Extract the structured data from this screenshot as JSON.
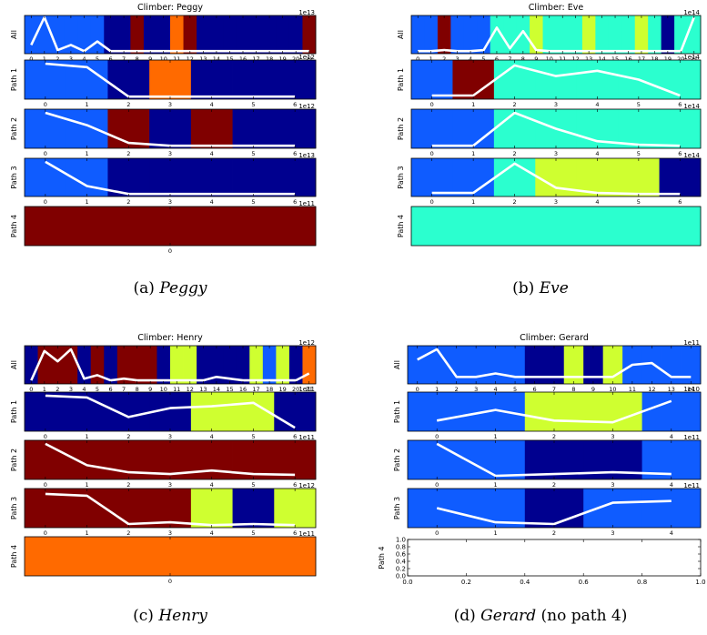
{
  "colors": {
    "dark_blue": "#00008f",
    "blue": "#0f5cff",
    "cyan": "#2bffcf",
    "yellow": "#cfff30",
    "orange": "#ff6a00",
    "dark_red": "#800000",
    "line": "#ffffff",
    "frame": "#000000"
  },
  "chart_data": [
    {
      "type": "heatmap",
      "title": "Climber: Peggy",
      "caption": {
        "label": "(a)",
        "name": "Peggy",
        "note": ""
      },
      "panels": [
        {
          "ylabel": "All",
          "exponent": "1e13",
          "xlim": [
            -0.5,
            21.5
          ],
          "ticks": [
            0,
            1,
            2,
            3,
            4,
            5,
            6,
            7,
            8,
            9,
            10,
            11,
            12,
            13,
            14,
            15,
            16,
            17,
            18,
            19,
            20,
            21
          ],
          "tick_labels": [
            "0",
            "1",
            "2",
            "3",
            "4",
            "5",
            "6",
            "7",
            "8",
            "9",
            "10",
            "11",
            "12",
            "13",
            "14",
            "15",
            "16",
            "17",
            "18",
            "19",
            "20",
            "21"
          ],
          "cells": [
            "blue",
            "blue",
            "blue",
            "blue",
            "blue",
            "blue",
            "dark_blue",
            "dark_blue",
            "dark_red",
            "dark_blue",
            "dark_blue",
            "orange",
            "dark_red",
            "dark_blue",
            "dark_blue",
            "dark_blue",
            "dark_blue",
            "dark_blue",
            "dark_blue",
            "dark_blue",
            "dark_blue",
            "dark_red"
          ],
          "line": [
            0.2,
            1.0,
            0.05,
            0.2,
            0.02,
            0.3,
            0.02,
            0.02,
            0.02,
            0.02,
            0.02,
            0.02,
            0.02,
            0.02,
            0.02,
            0.02,
            0.02,
            0.02,
            0.02,
            0.02,
            0.02,
            0.02
          ]
        },
        {
          "ylabel": "Path 1",
          "exponent": "1e12",
          "xlim": [
            -0.5,
            6.5
          ],
          "ticks": [
            0,
            1,
            2,
            3,
            4,
            5,
            6
          ],
          "tick_labels": [
            "0",
            "1",
            "2",
            "3",
            "4",
            "5",
            "6"
          ],
          "cells": [
            "blue",
            "blue",
            "dark_blue",
            "orange",
            "dark_blue",
            "dark_blue",
            "dark_blue"
          ],
          "line": [
            0.95,
            0.85,
            0.02,
            0.02,
            0.02,
            0.02,
            0.02
          ]
        },
        {
          "ylabel": "Path 2",
          "exponent": "1e12",
          "xlim": [
            -0.5,
            6.5
          ],
          "ticks": [
            0,
            1,
            2,
            3,
            4,
            5,
            6
          ],
          "tick_labels": [
            "0",
            "1",
            "2",
            "3",
            "4",
            "5",
            "6"
          ],
          "cells": [
            "blue",
            "blue",
            "dark_red",
            "dark_blue",
            "dark_red",
            "dark_blue",
            "dark_blue"
          ],
          "line": [
            0.95,
            0.6,
            0.1,
            0.02,
            0.02,
            0.02,
            0.02
          ]
        },
        {
          "ylabel": "Path 3",
          "exponent": "1e13",
          "xlim": [
            -0.5,
            6.5
          ],
          "ticks": [
            0,
            1,
            2,
            3,
            4,
            5,
            6
          ],
          "tick_labels": [
            "0",
            "1",
            "2",
            "3",
            "4",
            "5",
            "6"
          ],
          "cells": [
            "blue",
            "blue",
            "dark_blue",
            "dark_blue",
            "dark_blue",
            "dark_blue",
            "dark_blue"
          ],
          "line": [
            0.95,
            0.25,
            0.02,
            0.02,
            0.02,
            0.02,
            0.02
          ]
        },
        {
          "ylabel": "Path 4",
          "exponent": "1e11",
          "xlim": [
            -0.5,
            0.5
          ],
          "ticks": [
            0
          ],
          "tick_labels": [
            "0"
          ],
          "cells": [
            "dark_red"
          ],
          "line": []
        }
      ]
    },
    {
      "type": "heatmap",
      "title": "Climber: Eve",
      "caption": {
        "label": "(b)",
        "name": "Eve",
        "note": ""
      },
      "panels": [
        {
          "ylabel": "All",
          "exponent": "1e14",
          "xlim": [
            -0.5,
            21.5
          ],
          "ticks": [
            0,
            1,
            2,
            3,
            4,
            5,
            6,
            7,
            8,
            9,
            10,
            11,
            12,
            13,
            14,
            15,
            16,
            17,
            18,
            19,
            20,
            21
          ],
          "tick_labels": [
            "0",
            "1",
            "2",
            "3",
            "4",
            "5",
            "6",
            "7",
            "8",
            "9",
            "10",
            "11",
            "12",
            "13",
            "14",
            "15",
            "16",
            "17",
            "18",
            "19",
            "20",
            "21"
          ],
          "cells": [
            "blue",
            "blue",
            "dark_red",
            "blue",
            "blue",
            "blue",
            "cyan",
            "cyan",
            "cyan",
            "yellow",
            "cyan",
            "cyan",
            "cyan",
            "yellow",
            "cyan",
            "cyan",
            "cyan",
            "yellow",
            "cyan",
            "dark_blue",
            "cyan",
            "cyan"
          ],
          "line": [
            0.02,
            0.02,
            0.05,
            0.02,
            0.02,
            0.05,
            0.7,
            0.1,
            0.6,
            0.05,
            0.02,
            0.02,
            0.02,
            0.02,
            0.02,
            0.02,
            0.02,
            0.02,
            0.02,
            0.02,
            0.02,
            1.0
          ]
        },
        {
          "ylabel": "Path 1",
          "exponent": "1e14",
          "xlim": [
            -0.5,
            6.5
          ],
          "ticks": [
            0,
            1,
            2,
            3,
            4,
            5,
            6
          ],
          "tick_labels": [
            "0",
            "1",
            "2",
            "3",
            "4",
            "5",
            "6"
          ],
          "cells": [
            "blue",
            "dark_red",
            "cyan",
            "cyan",
            "cyan",
            "cyan",
            "cyan"
          ],
          "line": [
            0.05,
            0.05,
            0.9,
            0.6,
            0.75,
            0.5,
            0.05
          ]
        },
        {
          "ylabel": "Path 2",
          "exponent": "1e14",
          "xlim": [
            -0.5,
            6.5
          ],
          "ticks": [
            0,
            1,
            2,
            3,
            4,
            5,
            6
          ],
          "tick_labels": [
            "0",
            "1",
            "2",
            "3",
            "4",
            "5",
            "6"
          ],
          "cells": [
            "blue",
            "blue",
            "cyan",
            "cyan",
            "cyan",
            "cyan",
            "cyan"
          ],
          "line": [
            0.02,
            0.02,
            0.95,
            0.5,
            0.15,
            0.05,
            0.02
          ]
        },
        {
          "ylabel": "Path 3",
          "exponent": "1e14",
          "xlim": [
            -0.5,
            6.5
          ],
          "ticks": [
            0,
            1,
            2,
            3,
            4,
            5,
            6
          ],
          "tick_labels": [
            "0",
            "1",
            "2",
            "3",
            "4",
            "5",
            "6"
          ],
          "cells": [
            "blue",
            "blue",
            "cyan",
            "yellow",
            "yellow",
            "yellow",
            "dark_blue"
          ],
          "line": [
            0.05,
            0.05,
            0.9,
            0.2,
            0.05,
            0.02,
            0.02
          ]
        },
        {
          "ylabel": "Path 4",
          "exponent": "",
          "xlim": [
            -0.5,
            0.5
          ],
          "ticks": [],
          "tick_labels": [],
          "cells": [
            "cyan"
          ],
          "line": []
        }
      ]
    },
    {
      "type": "heatmap",
      "title": "Climber: Henry",
      "caption": {
        "label": "(c)",
        "name": "Henry",
        "note": ""
      },
      "panels": [
        {
          "ylabel": "All",
          "exponent": "1e12",
          "xlim": [
            -0.5,
            21.5
          ],
          "ticks": [
            0,
            1,
            2,
            3,
            4,
            5,
            6,
            7,
            8,
            9,
            10,
            11,
            12,
            13,
            14,
            15,
            16,
            17,
            18,
            19,
            20,
            21
          ],
          "tick_labels": [
            "0",
            "1",
            "2",
            "3",
            "4",
            "5",
            "6",
            "7",
            "8",
            "9",
            "10",
            "11",
            "12",
            "13",
            "14",
            "15",
            "16",
            "17",
            "18",
            "19",
            "20",
            "21"
          ],
          "cells": [
            "dark_blue",
            "dark_red",
            "dark_red",
            "dark_red",
            "dark_blue",
            "dark_red",
            "dark_blue",
            "dark_red",
            "dark_red",
            "dark_red",
            "dark_blue",
            "yellow",
            "yellow",
            "dark_blue",
            "dark_blue",
            "dark_blue",
            "dark_blue",
            "yellow",
            "blue",
            "yellow",
            "dark_blue",
            "orange"
          ],
          "line": [
            0.05,
            0.9,
            0.6,
            0.95,
            0.1,
            0.2,
            0.05,
            0.1,
            0.05,
            0.05,
            0.05,
            0.05,
            0.05,
            0.05,
            0.15,
            0.1,
            0.05,
            0.05,
            0.05,
            0.05,
            0.05,
            0.25
          ]
        },
        {
          "ylabel": "Path 1",
          "exponent": "1e11",
          "xlim": [
            -0.5,
            6.5
          ],
          "ticks": [
            0,
            1,
            2,
            3,
            4,
            5,
            6
          ],
          "tick_labels": [
            "0",
            "1",
            "2",
            "3",
            "4",
            "5",
            "6"
          ],
          "cells": [
            "dark_blue",
            "dark_blue",
            "dark_blue",
            "dark_blue",
            "yellow",
            "yellow",
            "dark_blue"
          ],
          "line": [
            0.95,
            0.9,
            0.35,
            0.6,
            0.65,
            0.75,
            0.05
          ]
        },
        {
          "ylabel": "Path 2",
          "exponent": "1e11",
          "xlim": [
            -0.5,
            6.5
          ],
          "ticks": [
            0,
            1,
            2,
            3,
            4,
            5,
            6
          ],
          "tick_labels": [
            "0",
            "1",
            "2",
            "3",
            "4",
            "5",
            "6"
          ],
          "cells": [
            "dark_red",
            "dark_red",
            "dark_red",
            "dark_red",
            "dark_red",
            "dark_red",
            "dark_red"
          ],
          "line": [
            0.95,
            0.35,
            0.15,
            0.1,
            0.2,
            0.1,
            0.08
          ]
        },
        {
          "ylabel": "Path 3",
          "exponent": "1e12",
          "xlim": [
            -0.5,
            6.5
          ],
          "ticks": [
            0,
            1,
            2,
            3,
            4,
            5,
            6
          ],
          "tick_labels": [
            "0",
            "1",
            "2",
            "3",
            "4",
            "5",
            "6"
          ],
          "cells": [
            "dark_red",
            "dark_red",
            "dark_red",
            "dark_red",
            "yellow",
            "dark_blue",
            "yellow"
          ],
          "line": [
            0.9,
            0.85,
            0.05,
            0.1,
            0.02,
            0.05,
            0.02
          ]
        },
        {
          "ylabel": "Path 4",
          "exponent": "1e11",
          "xlim": [
            -0.5,
            0.5
          ],
          "ticks": [
            0
          ],
          "tick_labels": [
            "0"
          ],
          "cells": [
            "orange"
          ],
          "line": []
        }
      ]
    },
    {
      "type": "heatmap",
      "title": "Climber: Gerard",
      "caption": {
        "label": "(d)",
        "name": "Gerard",
        "note": "(no path 4)"
      },
      "panels": [
        {
          "ylabel": "All",
          "exponent": "1e11",
          "xlim": [
            -0.5,
            14.5
          ],
          "ticks": [
            0,
            1,
            2,
            3,
            4,
            5,
            6,
            7,
            8,
            9,
            10,
            11,
            12,
            13,
            14
          ],
          "tick_labels": [
            "0",
            "1",
            "2",
            "3",
            "4",
            "5",
            "6",
            "7",
            "8",
            "9",
            "10",
            "11",
            "12",
            "13",
            "14"
          ],
          "cells": [
            "blue",
            "blue",
            "blue",
            "blue",
            "blue",
            "blue",
            "dark_blue",
            "dark_blue",
            "yellow",
            "dark_blue",
            "yellow",
            "blue",
            "blue",
            "blue",
            "blue"
          ],
          "line": [
            0.65,
            0.95,
            0.15,
            0.15,
            0.25,
            0.15,
            0.15,
            0.15,
            0.15,
            0.15,
            0.15,
            0.5,
            0.55,
            0.15,
            0.15
          ]
        },
        {
          "ylabel": "Path 1",
          "exponent": "1e10",
          "xlim": [
            -0.5,
            4.5
          ],
          "ticks": [
            0,
            1,
            2,
            3,
            4
          ],
          "tick_labels": [
            "0",
            "1",
            "2",
            "3",
            "4"
          ],
          "cells": [
            "blue",
            "blue",
            "yellow",
            "yellow",
            "blue"
          ],
          "line": [
            0.25,
            0.55,
            0.25,
            0.2,
            0.8
          ]
        },
        {
          "ylabel": "Path 2",
          "exponent": "1e11",
          "xlim": [
            -0.5,
            4.5
          ],
          "ticks": [
            0,
            1,
            2,
            3,
            4
          ],
          "tick_labels": [
            "0",
            "1",
            "2",
            "3",
            "4"
          ],
          "cells": [
            "blue",
            "blue",
            "dark_blue",
            "dark_blue",
            "blue"
          ],
          "line": [
            0.95,
            0.05,
            0.1,
            0.15,
            0.1
          ]
        },
        {
          "ylabel": "Path 3",
          "exponent": "1e11",
          "xlim": [
            -0.5,
            4.5
          ],
          "ticks": [
            0,
            1,
            2,
            3,
            4
          ],
          "tick_labels": [
            "0",
            "1",
            "2",
            "3",
            "4"
          ],
          "cells": [
            "blue",
            "blue",
            "dark_blue",
            "blue",
            "blue"
          ],
          "line": [
            0.5,
            0.1,
            0.05,
            0.65,
            0.7
          ]
        },
        {
          "ylabel": "Path 4",
          "exponent": "",
          "empty": true,
          "xlim": [
            0.0,
            1.0
          ],
          "ylim": [
            0.0,
            1.0
          ],
          "ticks": [
            0.0,
            0.2,
            0.4,
            0.6,
            0.8,
            1.0
          ],
          "tick_labels": [
            "0.0",
            "0.2",
            "0.4",
            "0.6",
            "0.8",
            "1.0"
          ],
          "yticks": [
            0.0,
            0.2,
            0.4,
            0.6,
            0.8,
            1.0
          ],
          "ytick_labels": [
            "0.0",
            "0.2",
            "0.4",
            "0.6",
            "0.8",
            "1.0"
          ],
          "cells": [],
          "line": []
        }
      ]
    }
  ]
}
